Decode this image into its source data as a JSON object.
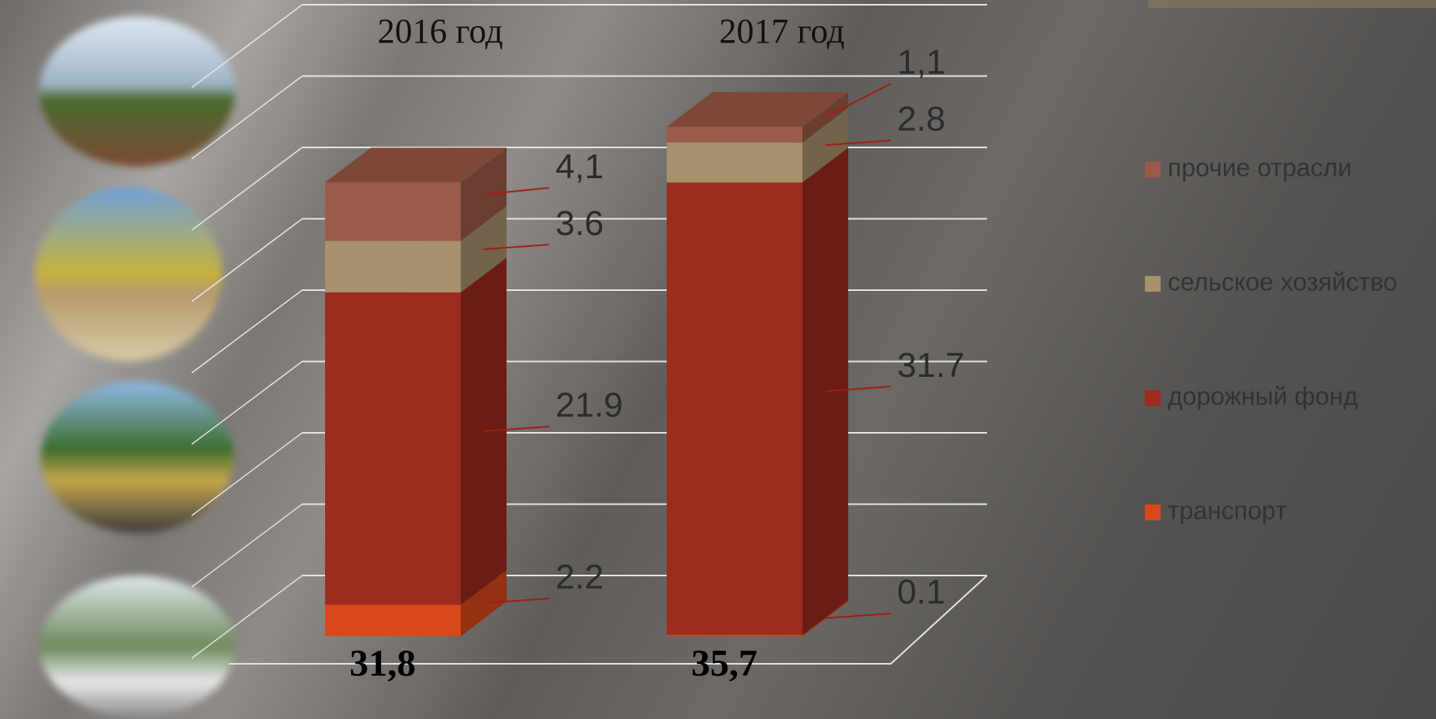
{
  "chart_data": {
    "type": "bar",
    "stacked": true,
    "categories": [
      "2016 год",
      "2017 год"
    ],
    "series": [
      {
        "name": "транспорт",
        "color": "#d8481a",
        "values": [
          2.2,
          0.1
        ]
      },
      {
        "name": "дорожный фонд",
        "color": "#9e2b1f",
        "values": [
          21.9,
          31.7
        ]
      },
      {
        "name": "сельское хозяйство",
        "color": "#a8916d",
        "values": [
          3.6,
          2.8
        ]
      },
      {
        "name": "прочие отрасли",
        "color": "#9c5a48",
        "values": [
          4.1,
          1.1
        ],
        "value_labels": [
          "4,1",
          "1,1"
        ]
      }
    ],
    "totals": {
      "values": [
        31.8,
        35.7
      ],
      "value_labels": [
        "31,8",
        "35,7"
      ]
    },
    "ylim": [
      0,
      40
    ],
    "yticks": [
      0,
      5,
      10,
      15,
      20,
      25,
      30,
      35,
      40
    ],
    "grid": true,
    "legend": "right"
  }
}
